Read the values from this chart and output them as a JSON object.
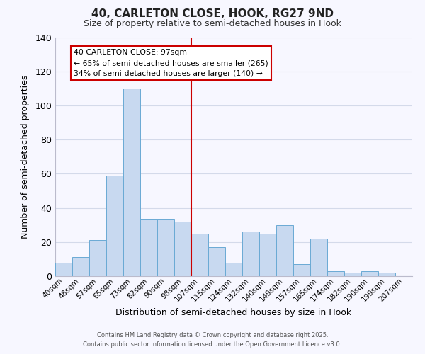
{
  "title": "40, CARLETON CLOSE, HOOK, RG27 9ND",
  "subtitle": "Size of property relative to semi-detached houses in Hook",
  "xlabel": "Distribution of semi-detached houses by size in Hook",
  "ylabel": "Number of semi-detached properties",
  "bar_labels": [
    "40sqm",
    "48sqm",
    "57sqm",
    "65sqm",
    "73sqm",
    "82sqm",
    "90sqm",
    "98sqm",
    "107sqm",
    "115sqm",
    "124sqm",
    "132sqm",
    "140sqm",
    "149sqm",
    "157sqm",
    "165sqm",
    "174sqm",
    "182sqm",
    "190sqm",
    "199sqm",
    "207sqm"
  ],
  "bar_values": [
    8,
    11,
    21,
    59,
    110,
    33,
    33,
    32,
    25,
    17,
    8,
    26,
    25,
    30,
    7,
    22,
    3,
    2,
    3,
    2,
    0
  ],
  "bar_color": "#c8d9f0",
  "bar_edge_color": "#6aaad4",
  "background_color": "#f7f7ff",
  "grid_color": "#d4daea",
  "vline_x": 7.5,
  "vline_color": "#cc0000",
  "annotation_title": "40 CARLETON CLOSE: 97sqm",
  "annotation_line1": "← 65% of semi-detached houses are smaller (265)",
  "annotation_line2": "34% of semi-detached houses are larger (140) →",
  "annotation_box_color": "#ffffff",
  "annotation_box_edge": "#cc0000",
  "ylim": [
    0,
    140
  ],
  "yticks": [
    0,
    20,
    40,
    60,
    80,
    100,
    120,
    140
  ],
  "footer1": "Contains HM Land Registry data © Crown copyright and database right 2025.",
  "footer2": "Contains public sector information licensed under the Open Government Licence v3.0."
}
